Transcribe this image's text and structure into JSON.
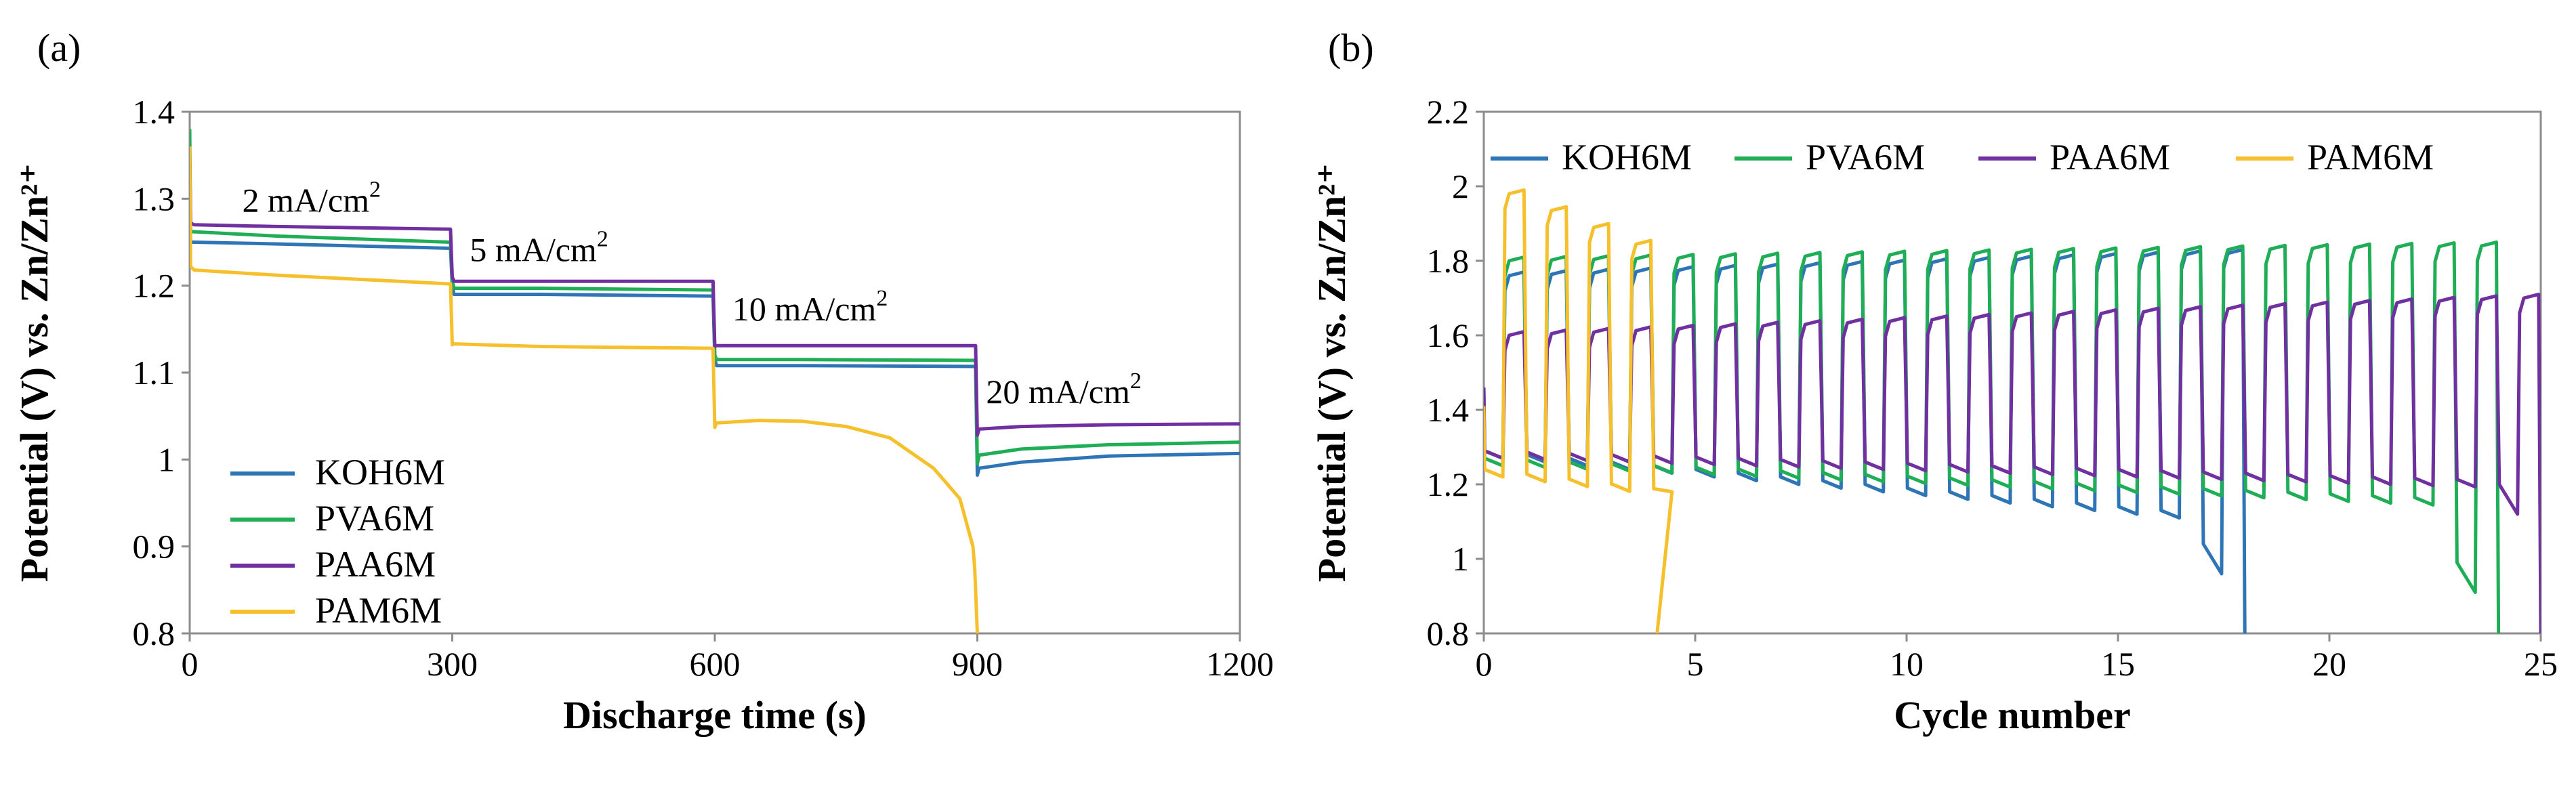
{
  "chart_data": [
    {
      "panel": "(a)",
      "type": "line",
      "xlabel": "Discharge time (s)",
      "ylabel": "Potential (V) vs. Zn/Zn²⁺",
      "xlim": [
        0,
        1200
      ],
      "ylim": [
        0.8,
        1.4
      ],
      "xticks": [
        0,
        300,
        600,
        900,
        1200
      ],
      "xtick_labels": [
        "0",
        "300",
        "600",
        "900",
        "1200"
      ],
      "yticks": [
        0.8,
        0.9,
        1.0,
        1.1,
        1.2,
        1.3,
        1.4
      ],
      "ytick_labels": [
        "0.8",
        "0.9",
        "1",
        "1.1",
        "1.2",
        "1.3",
        "1.4"
      ],
      "legend_position": "lower-left",
      "annotations": [
        {
          "text": "2 mA/cm",
          "sup": "2",
          "x": 60,
          "y": 1.285
        },
        {
          "text": "5 mA/cm",
          "sup": "2",
          "x": 320,
          "y": 1.228
        },
        {
          "text": "10 mA/cm",
          "sup": "2",
          "x": 620,
          "y": 1.16
        },
        {
          "text": "20 mA/cm",
          "sup": "2",
          "x": 910,
          "y": 1.065
        }
      ],
      "series": [
        {
          "name": "KOH6M",
          "color": "#2E75B6",
          "x": [
            0,
            1,
            5,
            100,
            298,
            300,
            302,
            400,
            598,
            600,
            602,
            700,
            898,
            900,
            902,
            950,
            1050,
            1200
          ],
          "y": [
            1.3,
            1.25,
            1.25,
            1.248,
            1.243,
            1.2,
            1.19,
            1.19,
            1.188,
            1.115,
            1.108,
            1.108,
            1.107,
            0.982,
            0.99,
            0.997,
            1.004,
            1.007
          ]
        },
        {
          "name": "PVA6M",
          "color": "#1FAE55",
          "x": [
            0,
            1,
            5,
            100,
            298,
            300,
            302,
            400,
            598,
            600,
            602,
            700,
            898,
            900,
            902,
            950,
            1050,
            1200
          ],
          "y": [
            1.38,
            1.262,
            1.262,
            1.257,
            1.25,
            1.205,
            1.197,
            1.197,
            1.195,
            1.12,
            1.115,
            1.115,
            1.114,
            0.995,
            1.005,
            1.012,
            1.017,
            1.02
          ]
        },
        {
          "name": "PAA6M",
          "color": "#7030A0",
          "x": [
            0,
            1,
            5,
            100,
            298,
            300,
            302,
            400,
            598,
            600,
            602,
            700,
            898,
            900,
            902,
            950,
            1050,
            1200
          ],
          "y": [
            1.35,
            1.272,
            1.27,
            1.268,
            1.265,
            1.21,
            1.205,
            1.205,
            1.205,
            1.13,
            1.131,
            1.131,
            1.131,
            1.028,
            1.035,
            1.038,
            1.04,
            1.041
          ]
        },
        {
          "name": "PAM6M",
          "color": "#F5C02C",
          "x": [
            0,
            1,
            5,
            100,
            298,
            300,
            302,
            400,
            598,
            600,
            602,
            650,
            700,
            750,
            800,
            850,
            880,
            895,
            897,
            900
          ],
          "y": [
            1.36,
            1.222,
            1.218,
            1.212,
            1.202,
            1.132,
            1.133,
            1.13,
            1.128,
            1.037,
            1.042,
            1.045,
            1.044,
            1.038,
            1.025,
            0.99,
            0.955,
            0.9,
            0.875,
            0.8
          ]
        }
      ]
    },
    {
      "panel": "(b)",
      "type": "line",
      "xlabel": "Cycle number",
      "ylabel": "Potential (V) vs. Zn/Zn²⁺",
      "xlim": [
        0,
        25
      ],
      "ylim": [
        0.8,
        2.2
      ],
      "xticks": [
        0,
        5,
        10,
        15,
        20,
        25
      ],
      "xtick_labels": [
        "0",
        "5",
        "10",
        "15",
        "20",
        "25"
      ],
      "yticks": [
        0.8,
        1.0,
        1.2,
        1.4,
        1.6,
        1.8,
        2.0,
        2.2
      ],
      "ytick_labels": [
        "0.8",
        "1",
        "1.2",
        "1.4",
        "1.6",
        "1.8",
        "2",
        "2.2"
      ],
      "legend_position": "top",
      "series": [
        {
          "name": "KOH6M",
          "color": "#2E75B6",
          "x_end": 18.0,
          "low_start": 1.29,
          "low_end": 1.12,
          "high_start": 1.76,
          "high_end": 1.82,
          "end_value": 0.8,
          "final_low_dip": 0.96
        },
        {
          "name": "PVA6M",
          "color": "#1FAE55",
          "x_end": 24.0,
          "low_start": 1.27,
          "low_end": 1.16,
          "high_start": 1.8,
          "high_end": 1.84,
          "end_value": 0.8,
          "final_low_dip": 0.91
        },
        {
          "name": "PAA6M",
          "color": "#7030A0",
          "x_end": 25.0,
          "low_start": 1.29,
          "low_end": 1.21,
          "high_start": 1.6,
          "high_end": 1.7,
          "end_value": 0.8,
          "final_low_dip": 1.12
        },
        {
          "name": "PAM6M",
          "color": "#F5C02C",
          "x_end": 4.1,
          "low_start": 1.24,
          "low_end": 1.2,
          "high_start": 1.98,
          "high_end": 1.84,
          "end_value": 0.8,
          "final_low_dip": 1.18
        }
      ]
    }
  ]
}
